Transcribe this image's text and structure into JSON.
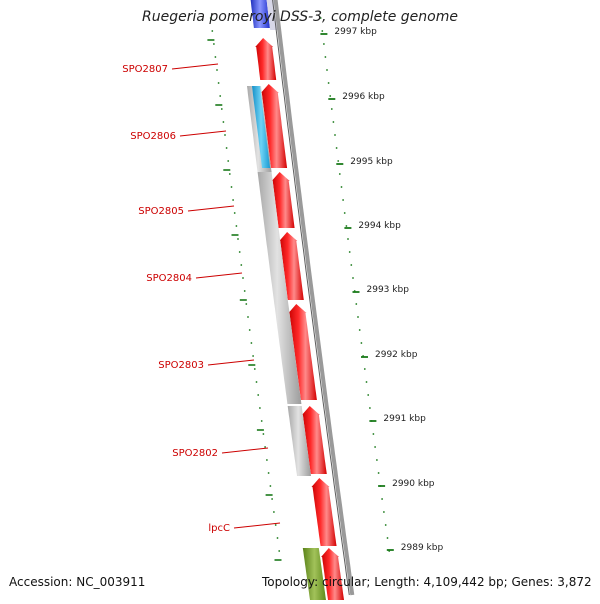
{
  "title": "Ruegeria pomeroyi DSS-3, complete genome",
  "accession": "Accession: NC_003911",
  "topology": "Topology: circular; Length: 4,109,442 bp; Genes: 3,872",
  "colors": {
    "cds": "#ff0000",
    "gene": "#bbbbbb",
    "rna": "#29b6e8",
    "other": "#6f9a1f",
    "top_feature": "#2233cc",
    "backbone": "#888888",
    "tick": "#1a7a1a",
    "label": "#cc0000"
  },
  "genes": [
    {
      "label": "SPO2807"
    },
    {
      "label": "SPO2806"
    },
    {
      "label": "SPO2805"
    },
    {
      "label": "SPO2804"
    },
    {
      "label": "SPO2803"
    },
    {
      "label": "SPO2802"
    },
    {
      "label": "lpcC"
    }
  ],
  "ticks": [
    {
      "label": "2997 kbp"
    },
    {
      "label": "2996 kbp"
    },
    {
      "label": "2995 kbp"
    },
    {
      "label": "2994 kbp"
    },
    {
      "label": "2993 kbp"
    },
    {
      "label": "2992 kbp"
    },
    {
      "label": "2991 kbp"
    },
    {
      "label": "2990 kbp"
    },
    {
      "label": "2989 kbp"
    }
  ]
}
